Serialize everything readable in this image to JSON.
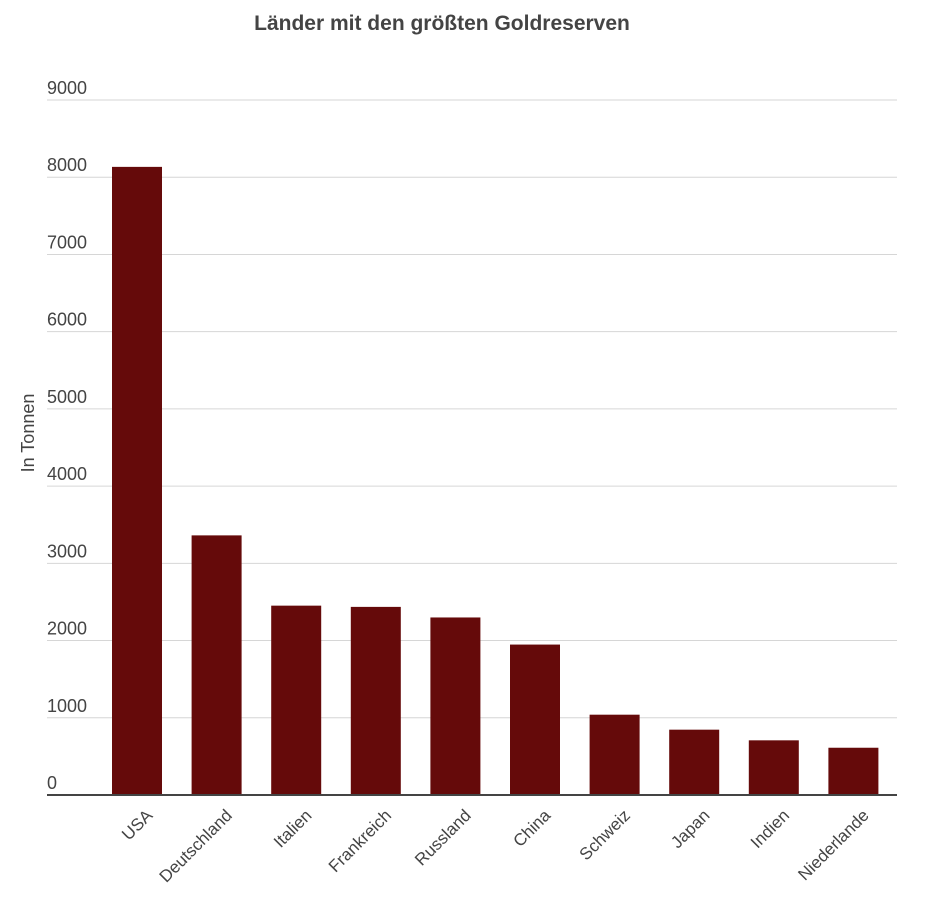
{
  "chart_data": {
    "type": "bar",
    "title": "Länder mit den größten Goldreserven",
    "xlabel": "",
    "ylabel": "In Tonnen",
    "categories": [
      "USA",
      "Deutschland",
      "Italien",
      "Frankreich",
      "Russland",
      "China",
      "Schweiz",
      "Japan",
      "Indien",
      "Niederlande"
    ],
    "values": [
      8134,
      3362,
      2452,
      2436,
      2299,
      1948,
      1040,
      846,
      708,
      612
    ],
    "ylim": [
      0,
      9000
    ],
    "yticks": [
      0,
      1000,
      2000,
      3000,
      4000,
      5000,
      6000,
      7000,
      8000,
      9000
    ],
    "grid": true,
    "bar_color": "#650a0a",
    "grid_color": "#d6d6d6",
    "axis_color": "#444444"
  }
}
